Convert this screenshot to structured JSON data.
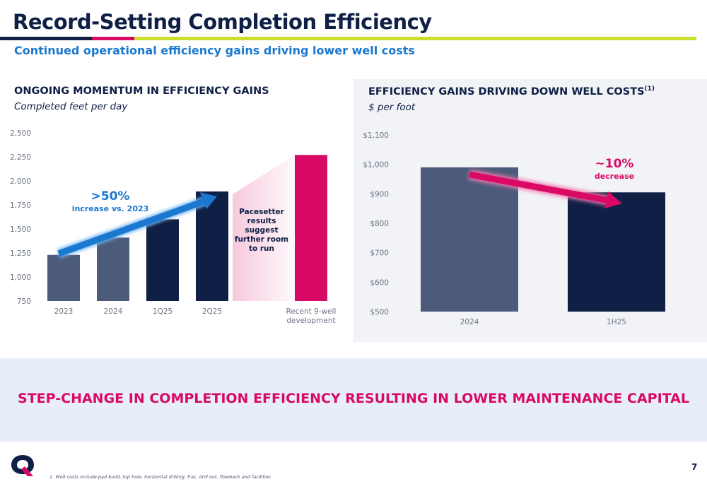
{
  "header": {
    "title": "Record-Setting Completion Efficiency",
    "subtitle": "Continued operational efficiency gains driving lower well costs"
  },
  "left_panel": {
    "title": "ONGOING MOMENTUM IN EFFICIENCY GAINS",
    "subtitle": "Completed feet per day",
    "callout_value": ">50%",
    "callout_text": "increase vs. 2023",
    "note_lines": [
      "Pacesetter",
      "results",
      "suggest",
      "further room",
      "to run"
    ]
  },
  "right_panel": {
    "title": "EFFICIENCY GAINS DRIVING DOWN WELL COSTS",
    "title_superscript": "(1)",
    "subtitle": "$ per foot",
    "callout_value": "~10%",
    "callout_text": "decrease"
  },
  "banner": {
    "text": "STEP-CHANGE IN COMPLETION EFFICIENCY RESULTING IN LOWER MAINTENANCE CAPITAL"
  },
  "footnote": "1. Well costs include pad build, top hole, horizontal drilling, frac, drill out, flowback and facilities",
  "page_number": "7",
  "colors": {
    "navy": "#0f1f45",
    "slate": "#4d5b7b",
    "magenta": "#d80a65",
    "blue": "#1a78cf",
    "lime": "#cbde2e"
  },
  "chart_data": [
    {
      "type": "bar",
      "categories": [
        "2023",
        "2024",
        "1Q25",
        "2Q25",
        "Recent 9-well development"
      ],
      "category_lines": [
        [
          "2023"
        ],
        [
          "2024"
        ],
        [
          "1Q25"
        ],
        [
          "2Q25"
        ],
        [
          "Recent 9-well",
          "development"
        ]
      ],
      "values": [
        1230,
        1410,
        1600,
        1890,
        2270
      ],
      "bar_colors": [
        "#4d5b7b",
        "#4d5b7b",
        "#0f1f45",
        "#0f1f45",
        "#d80a65"
      ],
      "ylim": [
        750,
        2500
      ],
      "yticks": [
        750,
        1000,
        1250,
        1500,
        1750,
        2000,
        2250,
        2500
      ],
      "ytick_labels": [
        "750",
        "1,000",
        "1,250",
        "1,500",
        "1,750",
        "2,000",
        "2,250",
        "2,500"
      ],
      "grid": false
    },
    {
      "type": "bar",
      "categories": [
        "2024",
        "1H25"
      ],
      "values": [
        990,
        905
      ],
      "bar_colors": [
        "#4d5b7b",
        "#0f1f45"
      ],
      "ylim": [
        500,
        1100
      ],
      "yticks": [
        500,
        600,
        700,
        800,
        900,
        1000,
        1100
      ],
      "ytick_labels": [
        "$500",
        "$600",
        "$700",
        "$800",
        "$900",
        "$1,000",
        "$1,100"
      ],
      "grid": false
    }
  ]
}
